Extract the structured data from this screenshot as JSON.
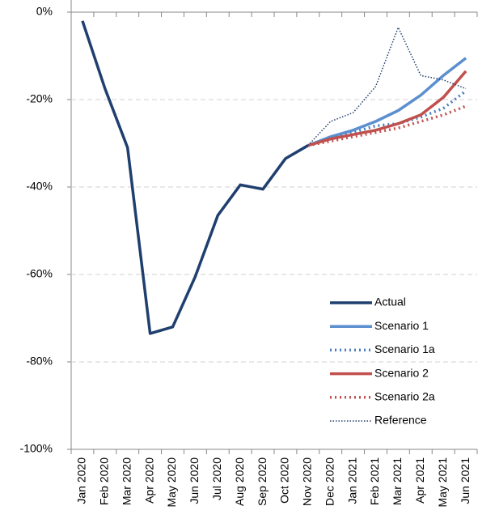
{
  "chart_data": {
    "type": "line",
    "categories": [
      "Jan 2020",
      "Feb 2020",
      "Mar 2020",
      "Apr 2020",
      "May 2020",
      "Jun 2020",
      "Jul 2020",
      "Aug 2020",
      "Sep 2020",
      "Oct 2020",
      "Nov 2020",
      "Dec 2020",
      "Jan 2021",
      "Feb 2021",
      "Mar 2021",
      "Apr 2021",
      "May 2021",
      "Jun 2021"
    ],
    "series": [
      {
        "name": "Actual",
        "color": "#1f3f6e",
        "style": "solid",
        "width": 3.5,
        "values": [
          -2,
          -17.5,
          -31,
          -73.5,
          -72,
          -60.5,
          -46.5,
          -39.5,
          -40.5,
          -33.5,
          -30.5,
          null,
          null,
          null,
          null,
          null,
          null,
          null
        ]
      },
      {
        "name": "Scenario 1",
        "color": "#5b8fcf",
        "style": "solid",
        "width": 3.5,
        "values": [
          null,
          null,
          null,
          null,
          null,
          null,
          null,
          null,
          null,
          null,
          -30.5,
          -28.5,
          -27,
          -25,
          -22.5,
          -19,
          -14.5,
          -10.5
        ]
      },
      {
        "name": "Scenario 1a",
        "color": "#4a7ebf",
        "style": "dotted",
        "width": 3.5,
        "values": [
          null,
          null,
          null,
          null,
          null,
          null,
          null,
          null,
          null,
          null,
          -30.5,
          -29,
          -27.5,
          -26,
          -25.5,
          -24,
          -22,
          -18
        ]
      },
      {
        "name": "Scenario 2",
        "color": "#c0504d",
        "style": "solid",
        "width": 3.5,
        "values": [
          null,
          null,
          null,
          null,
          null,
          null,
          null,
          null,
          null,
          null,
          -30.5,
          -29,
          -28,
          -27,
          -25.5,
          -23.5,
          -19.5,
          -13.5
        ]
      },
      {
        "name": "Scenario 2a",
        "color": "#c0504d",
        "style": "dotted",
        "width": 3.5,
        "values": [
          null,
          null,
          null,
          null,
          null,
          null,
          null,
          null,
          null,
          null,
          -30.5,
          -29.5,
          -28.5,
          -27.5,
          -26.5,
          -25,
          -23.5,
          -21.5
        ]
      },
      {
        "name": "Reference",
        "color": "#1f3f6e",
        "style": "dotted",
        "width": 1.5,
        "values": [
          null,
          null,
          null,
          null,
          null,
          null,
          null,
          null,
          null,
          null,
          -30.5,
          -25,
          -23,
          -17,
          -3.5,
          -14.5,
          -15.5,
          -17.5
        ]
      }
    ],
    "ylim": [
      -100,
      0
    ],
    "yticks": [
      {
        "value": -100,
        "label": "-100%"
      },
      {
        "value": -80,
        "label": "-80%"
      },
      {
        "value": -60,
        "label": "-60%"
      },
      {
        "value": -40,
        "label": "-40%"
      },
      {
        "value": -20,
        "label": "-20%"
      },
      {
        "value": 0,
        "label": "0%"
      }
    ],
    "grid": true,
    "legend": "lower right"
  }
}
